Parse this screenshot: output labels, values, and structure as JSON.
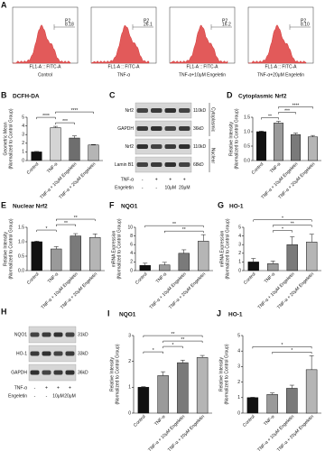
{
  "panel_a": {
    "label": "A",
    "x_axis": "FL1-A :: FITC-A",
    "gate": "P2",
    "samples": [
      {
        "name": "Control",
        "percent": "8.18"
      },
      {
        "name": "TNF-α",
        "percent": "26.1"
      },
      {
        "name": "TNF-α+10μM Engeletin",
        "percent": "16.2"
      },
      {
        "name": "TNF-α+20μM Engeletin",
        "percent": "8.10"
      }
    ]
  },
  "panel_c": {
    "label": "C",
    "rows": [
      {
        "name": "Nrf2",
        "size": "110kD"
      },
      {
        "name": "GAPDH",
        "size": "36kD"
      },
      {
        "name": "Nrf2",
        "size": "110kD"
      },
      {
        "name": "Lamin B1",
        "size": "68kD"
      }
    ],
    "fractions": [
      "Cytoplasmic",
      "Nuclear"
    ],
    "treatments": [
      {
        "name": "TNF-α",
        "marks": [
          "-",
          "+",
          "+",
          "+"
        ]
      },
      {
        "name": "Engeletin",
        "marks": [
          "-",
          "-",
          "10μM",
          "20μM"
        ]
      }
    ]
  },
  "panel_h": {
    "label": "H",
    "rows": [
      {
        "name": "NQO1",
        "size": "31kD"
      },
      {
        "name": "HO-1",
        "size": "33kD"
      },
      {
        "name": "GAPDH",
        "size": "36kD"
      }
    ],
    "treatments": [
      {
        "name": "TNF-α",
        "marks": [
          "-",
          "+",
          "+",
          "+"
        ]
      },
      {
        "name": "Engeletin",
        "marks": [
          "-",
          "-",
          "10μM",
          "20μM"
        ]
      }
    ]
  },
  "chart_data": [
    {
      "type": "bar",
      "label": "B",
      "title": "DCFH-DA",
      "y_label": "Geometric Mean",
      "y_label_2": "(Normalized to Control Group)",
      "categories": [
        "Control",
        "TNF-α",
        "TNF-α + 10μM Engeletin",
        "TNF-α + 20μM Engeletin"
      ],
      "values": [
        1.0,
        3.8,
        2.6,
        1.8
      ],
      "errors": [
        0.05,
        0.15,
        0.25,
        0.05
      ],
      "colors": [
        "#111111",
        "#d4d4d4",
        "#6e6e6e",
        "#b5b5b5"
      ],
      "ylim": [
        0,
        5
      ],
      "yticks": [
        0,
        1,
        2,
        3,
        4,
        5
      ],
      "significance": [
        {
          "pair": [
            1,
            2
          ],
          "label": "***"
        },
        {
          "pair": [
            0,
            1
          ],
          "label": "****"
        },
        {
          "pair": [
            1,
            3
          ],
          "label": "****"
        }
      ]
    },
    {
      "type": "bar",
      "label": "D",
      "title": "Cytoplasmic Nrf2",
      "y_label": "Relative Intensity",
      "y_label_2": "(Normalized to Control Group)",
      "categories": [
        "Control",
        "TNF-α",
        "TNF-α + 10μM Engeletin",
        "TNF-α + 20μM Engeletin"
      ],
      "values": [
        1.0,
        1.3,
        0.9,
        0.82
      ],
      "errors": [
        0.02,
        0.06,
        0.05,
        0.05
      ],
      "colors": [
        "#111111",
        "#9a9a9a",
        "#7a7a7a",
        "#b5b5b5"
      ],
      "ylim": [
        0,
        1.5
      ],
      "yticks": [
        {
          "value": 0,
          "label": "0.0"
        },
        0.5,
        {
          "value": 1,
          "label": "1.0"
        },
        1.5
      ],
      "significance": [
        {
          "pair": [
            0,
            1
          ],
          "label": "**"
        },
        {
          "pair": [
            1,
            2
          ],
          "label": "***"
        },
        {
          "pair": [
            1,
            3
          ],
          "label": "****"
        }
      ]
    },
    {
      "type": "bar",
      "label": "E",
      "title": "Nuclear Nrf2",
      "y_label": "Relative Intensity",
      "y_label_2": "(Normalized to Control Group)",
      "categories": [
        "Control",
        "TNF-α",
        "TNF-α + 10μM Engeletin",
        "TNF-α + 20μM Engeletin"
      ],
      "values": [
        1.0,
        0.75,
        1.2,
        1.15
      ],
      "errors": [
        0.02,
        0.08,
        0.08,
        0.12
      ],
      "colors": [
        "#111111",
        "#9a9a9a",
        "#7a7a7a",
        "#b5b5b5"
      ],
      "ylim": [
        0,
        1.5
      ],
      "yticks": [
        {
          "value": 0,
          "label": "0.0"
        },
        0.5,
        {
          "value": 1,
          "label": "1.0"
        },
        1.5
      ],
      "significance": [
        {
          "pair": [
            0,
            1
          ],
          "label": "*"
        },
        {
          "pair": [
            1,
            2
          ],
          "label": "**"
        },
        {
          "pair": [
            1,
            3
          ],
          "label": "**"
        }
      ]
    },
    {
      "type": "bar",
      "label": "F",
      "title": "NQO1",
      "y_label": "mRNA Expression",
      "y_label_2": "(Normalized to Control Group)",
      "categories": [
        "Control",
        "TNF-α",
        "TNF-α + 10μM Engeletin",
        "TNF-α + 20μM Engeletin"
      ],
      "values": [
        1.2,
        1.3,
        4.0,
        6.8
      ],
      "errors": [
        0.5,
        0.6,
        0.8,
        1.5
      ],
      "colors": [
        "#111111",
        "#9a9a9a",
        "#7a7a7a",
        "#b5b5b5"
      ],
      "ylim": [
        0,
        10
      ],
      "yticks": [
        0,
        2,
        4,
        6,
        8,
        10
      ],
      "significance": [
        {
          "pair": [
            1,
            3
          ],
          "label": "**"
        },
        {
          "pair": [
            0,
            3
          ],
          "label": "**"
        }
      ]
    },
    {
      "type": "bar",
      "label": "G",
      "title": "HO-1",
      "y_label": "mRNA Expression",
      "y_label_2": "(Normalized to Control Group)",
      "categories": [
        "Control",
        "TNF-α",
        "TNF-α + 10μM Engeletin",
        "TNF-α + 20μM Engeletin"
      ],
      "values": [
        1.0,
        0.8,
        3.0,
        3.3
      ],
      "errors": [
        0.4,
        0.3,
        0.9,
        0.9
      ],
      "colors": [
        "#111111",
        "#9a9a9a",
        "#7a7a7a",
        "#b5b5b5"
      ],
      "ylim": [
        0,
        5
      ],
      "yticks": [
        0,
        1,
        2,
        3,
        4,
        5
      ],
      "significance": [
        {
          "pair": [
            1,
            2
          ],
          "label": "*"
        },
        {
          "pair": [
            1,
            3
          ],
          "label": "**"
        },
        {
          "pair": [
            0,
            3
          ],
          "label": "*"
        }
      ]
    },
    {
      "type": "bar",
      "label": "I",
      "title": "NQO1",
      "y_label": "Relative Intensity",
      "y_label_2": "(Normalized to Control Group)",
      "categories": [
        "Control",
        "TNF-α",
        "TNF-α + 10μM Engeletin",
        "TNF-α + 20μM Engeletin"
      ],
      "values": [
        1.0,
        1.45,
        1.95,
        2.15
      ],
      "errors": [
        0.02,
        0.15,
        0.1,
        0.08
      ],
      "colors": [
        "#111111",
        "#9a9a9a",
        "#7a7a7a",
        "#b5b5b5"
      ],
      "ylim": [
        0,
        3
      ],
      "yticks": [
        0,
        1,
        2,
        3
      ],
      "significance": [
        {
          "pair": [
            0,
            1
          ],
          "label": "*"
        },
        {
          "pair": [
            1,
            2
          ],
          "label": "*"
        },
        {
          "pair": [
            1,
            3
          ],
          "label": "**"
        },
        {
          "pair": [
            0,
            3
          ],
          "label": "**"
        }
      ]
    },
    {
      "type": "bar",
      "label": "J",
      "title": "HO-1",
      "y_label": "Relative Intensity",
      "y_label_2": "(Normalized to Control Group)",
      "categories": [
        "Control",
        "TNF-α",
        "TNF-α + 10μM Engeletin",
        "TNF-α + 20μM Engeletin"
      ],
      "values": [
        1.0,
        1.2,
        1.6,
        2.8
      ],
      "errors": [
        0.02,
        0.1,
        0.2,
        0.9
      ],
      "colors": [
        "#111111",
        "#9a9a9a",
        "#7a7a7a",
        "#b5b5b5"
      ],
      "ylim": [
        0,
        5
      ],
      "yticks": [
        0,
        1,
        2,
        3,
        4,
        5
      ],
      "significance": [
        {
          "pair": [
            1,
            3
          ],
          "label": "*"
        },
        {
          "pair": [
            0,
            3
          ],
          "label": "*"
        }
      ]
    }
  ]
}
